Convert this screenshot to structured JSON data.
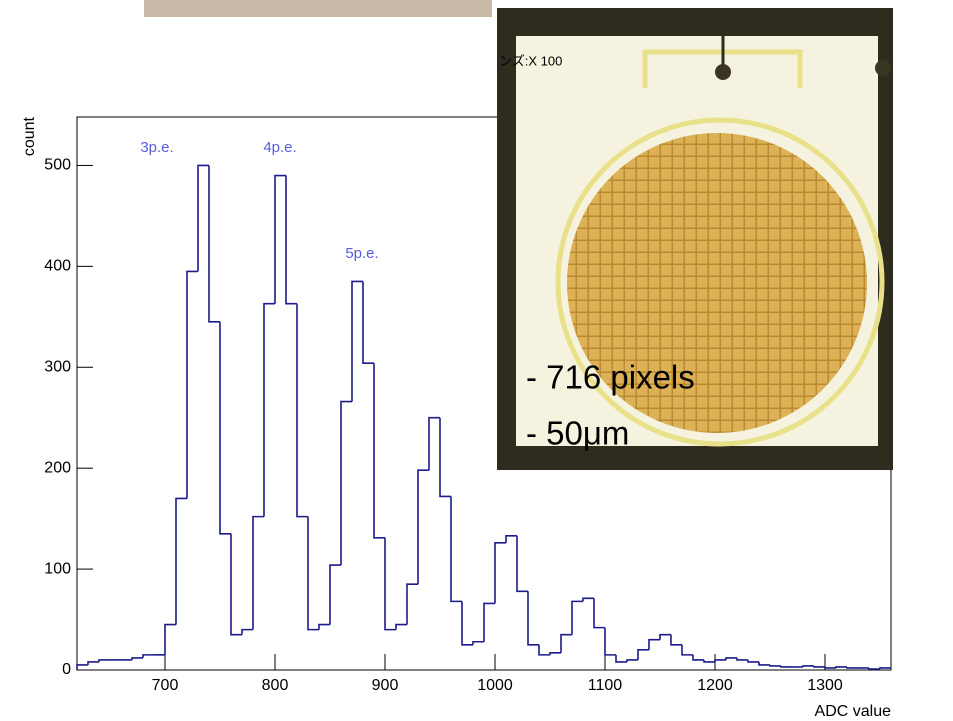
{
  "chart_data": {
    "type": "histogram",
    "bins": [
      620,
      630,
      640,
      650,
      660,
      670,
      680,
      690,
      700,
      710,
      720,
      730,
      740,
      750,
      760,
      770,
      780,
      790,
      800,
      810,
      820,
      830,
      840,
      850,
      860,
      870,
      880,
      890,
      900,
      910,
      920,
      930,
      940,
      950,
      960,
      970,
      980,
      990,
      1000,
      1010,
      1020,
      1030,
      1040,
      1050,
      1060,
      1070,
      1080,
      1090,
      1100,
      1110,
      1120,
      1130,
      1140,
      1150,
      1160,
      1170,
      1180,
      1190,
      1200,
      1210,
      1220,
      1230,
      1240,
      1250,
      1260,
      1270,
      1280,
      1290,
      1300,
      1310,
      1320,
      1330,
      1340,
      1350,
      1360
    ],
    "values": [
      5,
      8,
      10,
      10,
      10,
      12,
      15,
      15,
      45,
      170,
      395,
      500,
      345,
      135,
      35,
      40,
      152,
      363,
      490,
      363,
      152,
      40,
      45,
      104,
      266,
      385,
      304,
      131,
      40,
      45,
      85,
      198,
      250,
      172,
      68,
      25,
      28,
      66,
      126,
      133,
      78,
      25,
      15,
      17,
      35,
      68,
      71,
      42,
      15,
      8,
      10,
      20,
      30,
      35,
      25,
      15,
      10,
      8,
      10,
      12,
      10,
      8,
      5,
      4,
      3,
      3,
      4,
      3,
      2,
      3,
      2,
      2,
      1,
      2
    ],
    "color": "#1c1c8c",
    "xlim": [
      620,
      1360
    ],
    "ylim": [
      0,
      548
    ],
    "xticks": [
      700,
      800,
      900,
      1000,
      1100,
      1200,
      1300
    ],
    "yticks": [
      0,
      100,
      200,
      300,
      400,
      500
    ],
    "x_label": "ADC value",
    "y_label": "count",
    "annotations": [
      "3p.e.",
      "4p.e.",
      "5p.e."
    ],
    "annotation_color": "#5b5be0"
  },
  "photo": {
    "lens_label": "ンズ:X 100",
    "notes": [
      "- 716 pixels",
      "- 50μm"
    ]
  }
}
